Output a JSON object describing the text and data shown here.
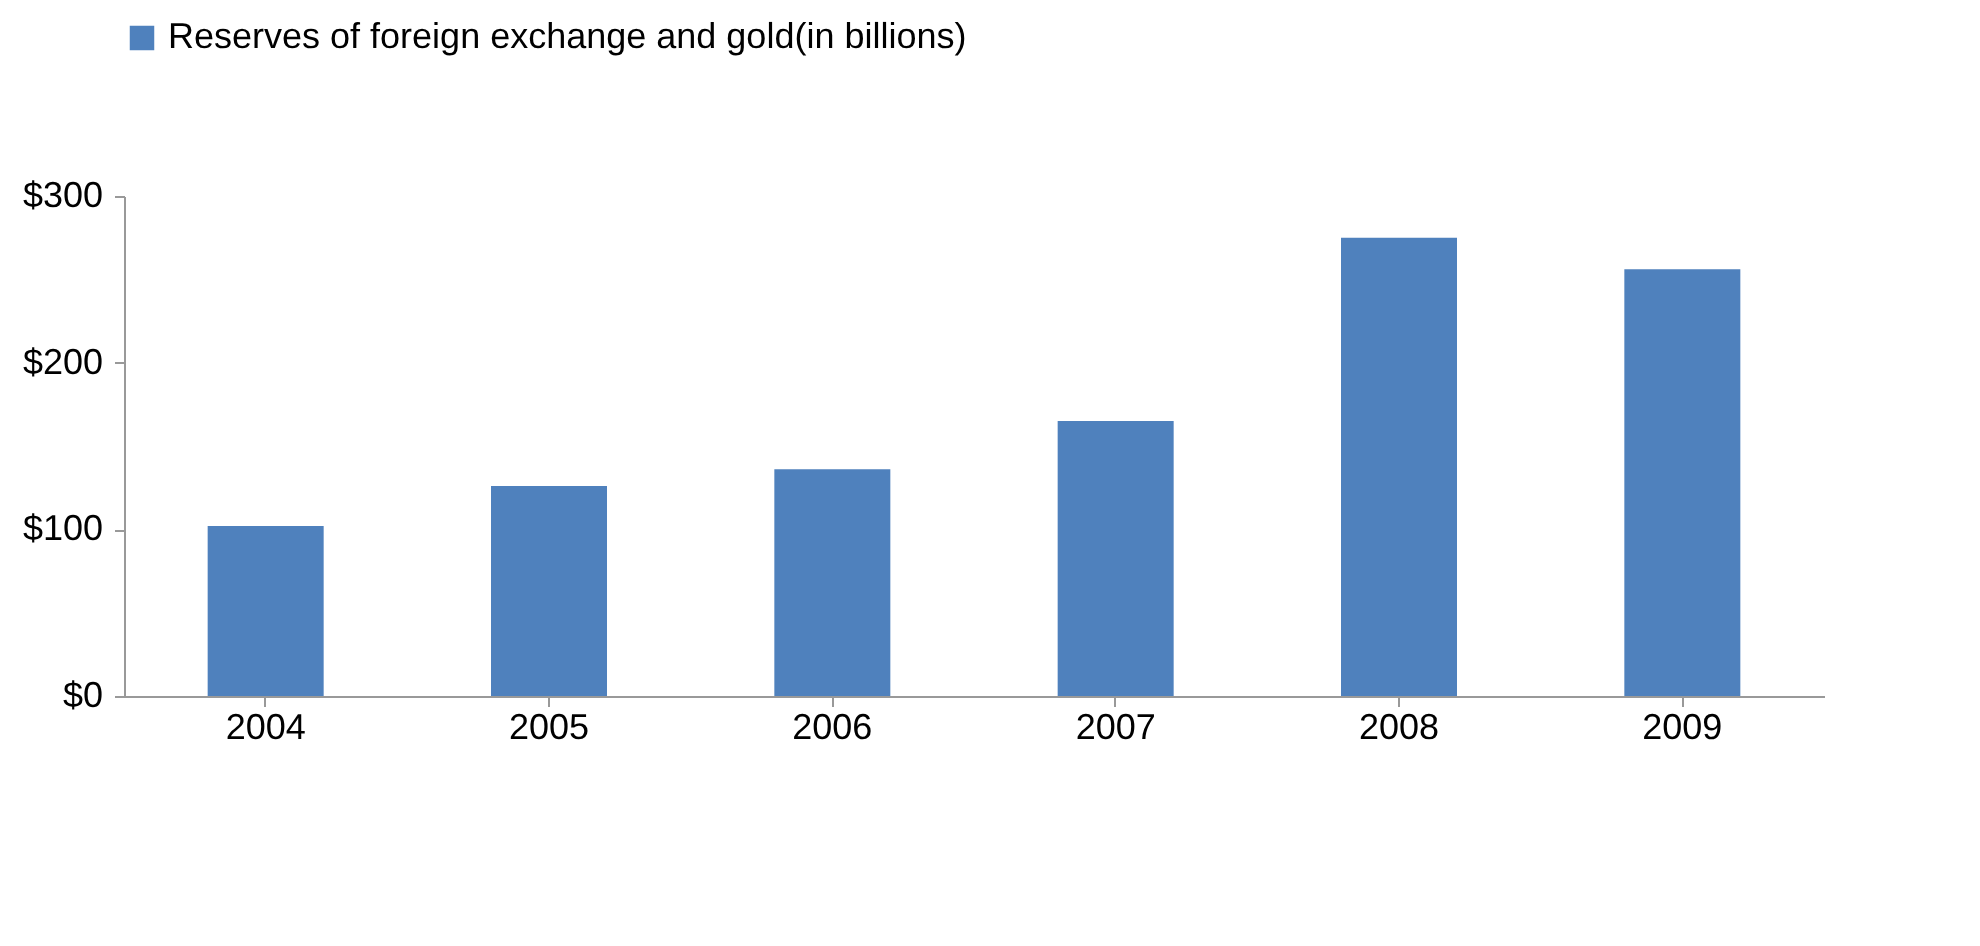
{
  "chart_data": {
    "type": "bar",
    "categories": [
      "2004",
      "2005",
      "2006",
      "2007",
      "2008",
      "2009"
    ],
    "series": [
      {
        "name": "Reserves of foreign exchange and gold(in billions)",
        "color": "#4f81bd",
        "values": [
          102,
          126,
          136,
          165,
          275,
          256
        ]
      }
    ],
    "ylim": [
      0,
      300
    ],
    "yticks": [
      {
        "value": 0,
        "label": "$0"
      },
      {
        "value": 100,
        "label": "$100"
      },
      {
        "value": 200,
        "label": "$200"
      },
      {
        "value": 300,
        "label": "$300"
      }
    ],
    "grid": false,
    "legend": "top"
  }
}
